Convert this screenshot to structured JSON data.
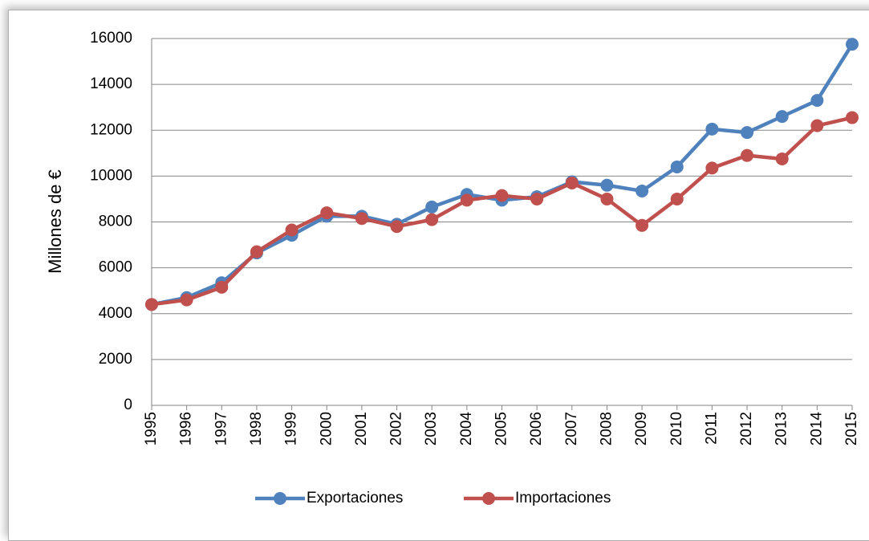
{
  "chart_data": {
    "type": "line",
    "y_label": "Millones de €",
    "categories": [
      "1995",
      "1996",
      "1997",
      "1998",
      "1999",
      "2000",
      "2001",
      "2002",
      "2003",
      "2004",
      "2005",
      "2006",
      "2007",
      "2008",
      "2009",
      "2010",
      "2011",
      "2012",
      "2013",
      "2014",
      "2015"
    ],
    "series": [
      {
        "name": "Exportaciones",
        "color": "#4f81bd",
        "values": [
          4400,
          4700,
          5350,
          6650,
          7420,
          8250,
          8250,
          7900,
          8650,
          9200,
          8950,
          9100,
          9750,
          9600,
          9350,
          10400,
          12050,
          11900,
          12600,
          13300,
          15750
        ]
      },
      {
        "name": "Importaciones",
        "color": "#c0504d",
        "values": [
          4400,
          4600,
          5150,
          6700,
          7650,
          8400,
          8150,
          7800,
          8100,
          8950,
          9150,
          9000,
          9700,
          9000,
          7850,
          9000,
          10350,
          10900,
          10750,
          12200,
          12550
        ]
      }
    ],
    "ylim": [
      0,
      16000
    ],
    "yticks": [
      0,
      2000,
      4000,
      6000,
      8000,
      10000,
      12000,
      14000,
      16000
    ],
    "grid": true,
    "legend": "bottom"
  }
}
